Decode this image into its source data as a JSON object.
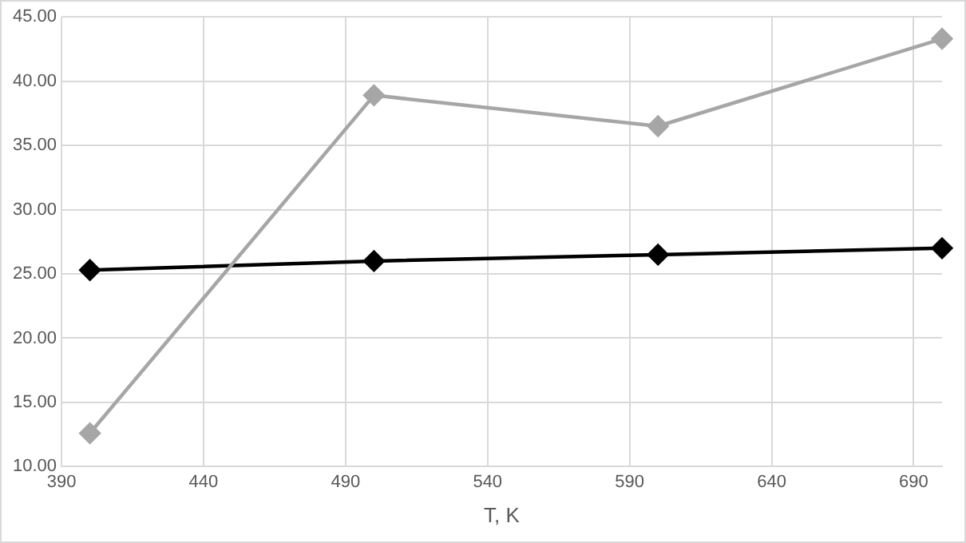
{
  "chart_data": {
    "type": "line",
    "xlabel": "T, K",
    "series": [
      {
        "color": "#a6a6a6",
        "x": [
          400,
          500,
          600,
          700
        ],
        "values": [
          12.6,
          38.9,
          36.5,
          43.3
        ]
      },
      {
        "color": "#000000",
        "x": [
          400,
          500,
          600,
          700
        ],
        "values": [
          25.3,
          26.0,
          26.5,
          27.0
        ]
      }
    ],
    "xlim": [
      390,
      700
    ],
    "xticks": [
      390,
      440,
      490,
      540,
      590,
      640,
      690
    ],
    "ylim": [
      10,
      45
    ],
    "yticks": [
      {
        "value": 10,
        "label": "10.00"
      },
      {
        "value": 15,
        "label": "15.00"
      },
      {
        "value": 20,
        "label": "20.00"
      },
      {
        "value": 25,
        "label": "25.00"
      },
      {
        "value": 30,
        "label": "30.00"
      },
      {
        "value": 35,
        "label": "35.00"
      },
      {
        "value": 40,
        "label": "40.00"
      },
      {
        "value": 45,
        "label": "45.00"
      }
    ],
    "grid": true,
    "marker": "diamond",
    "legend": false
  }
}
